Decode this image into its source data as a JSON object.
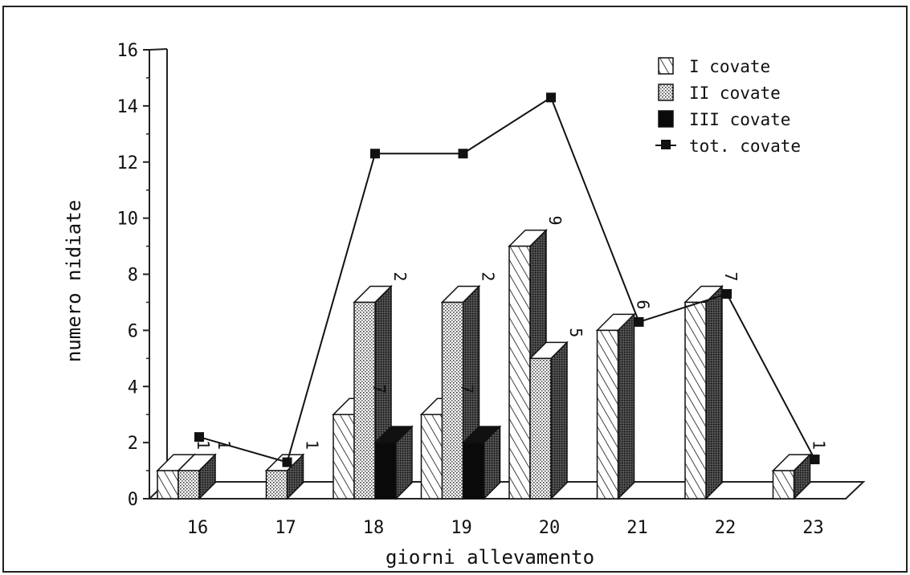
{
  "chart_data": {
    "type": "bar",
    "title": "",
    "xlabel": "giorni allevamento",
    "ylabel": "numero nidiate",
    "ylim": [
      0,
      16
    ],
    "yticks": [
      "0",
      "2",
      "4",
      "6",
      "8",
      "10",
      "12",
      "14",
      "16"
    ],
    "categories": [
      "16",
      "17",
      "18",
      "19",
      "20",
      "21",
      "22",
      "23"
    ],
    "series": [
      {
        "name": "I covate",
        "kind": "bar",
        "pattern": "hatch",
        "values": [
          1,
          0,
          3,
          3,
          9,
          6,
          7,
          1
        ]
      },
      {
        "name": "II covate",
        "kind": "bar",
        "pattern": "dots",
        "values": [
          1,
          1,
          7,
          7,
          5,
          0,
          0,
          0
        ]
      },
      {
        "name": "III covate",
        "kind": "bar",
        "pattern": "solid",
        "values": [
          0,
          0,
          2,
          2,
          0,
          0,
          0,
          0
        ]
      },
      {
        "name": "tot. covate",
        "kind": "line",
        "marker": "square",
        "values": [
          2.2,
          1.3,
          12.3,
          12.3,
          14.3,
          6.3,
          7.3,
          1.4
        ]
      }
    ],
    "data_labels": [
      {
        "category": "16",
        "text": "1"
      },
      {
        "category": "16",
        "text": "1"
      },
      {
        "category": "17",
        "text": "1"
      },
      {
        "category": "18",
        "text": "7"
      },
      {
        "category": "18",
        "text": "2"
      },
      {
        "category": "19",
        "text": "7"
      },
      {
        "category": "19",
        "text": "2"
      },
      {
        "category": "20",
        "text": "9"
      },
      {
        "category": "20",
        "text": "5"
      },
      {
        "category": "21",
        "text": "6"
      },
      {
        "category": "22",
        "text": "7"
      },
      {
        "category": "23",
        "text": "1"
      }
    ],
    "legend_position": "top-right",
    "grid": false,
    "style": "3d"
  }
}
